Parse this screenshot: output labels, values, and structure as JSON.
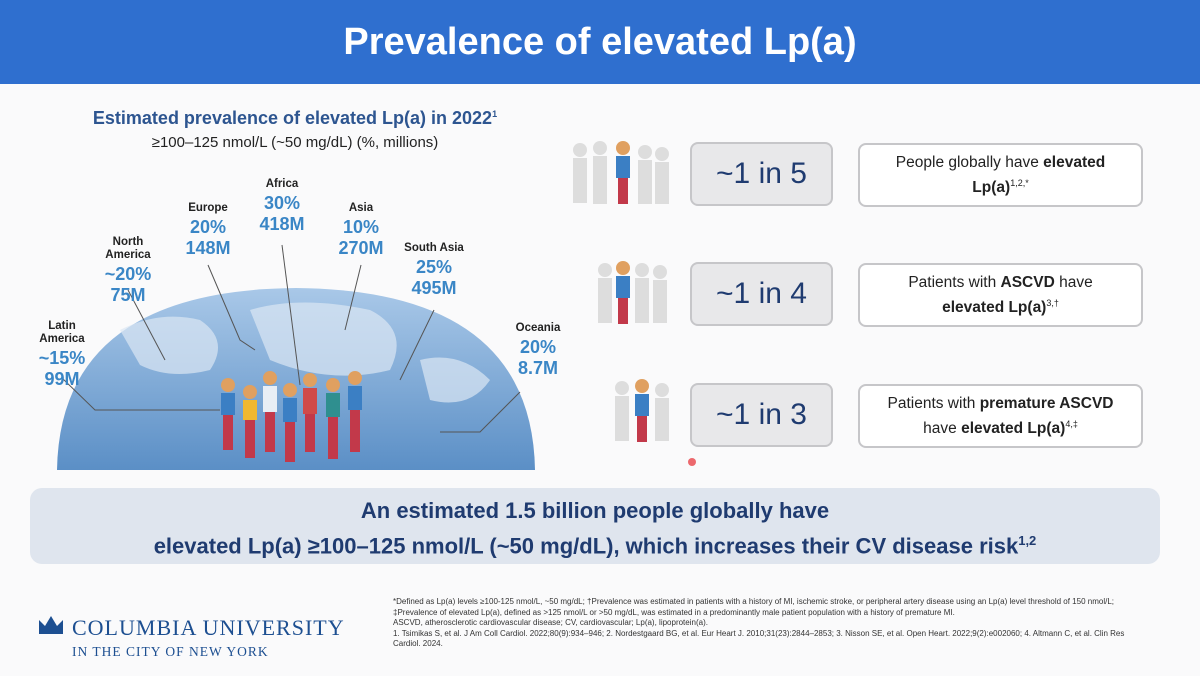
{
  "header": {
    "title": "Prevalence of elevated Lp(a)"
  },
  "map": {
    "heading": "Estimated prevalence of elevated Lp(a) in 2022",
    "heading_sup": "1",
    "subheading": "≥100–125 nmol/L (~50 mg/dL) (%, millions)",
    "regions": [
      {
        "name": "Latin America",
        "percent": "~15%",
        "count": "99M"
      },
      {
        "name": "North America",
        "percent": "~20%",
        "count": "75M"
      },
      {
        "name": "Europe",
        "percent": "20%",
        "count": "148M"
      },
      {
        "name": "Africa",
        "percent": "30%",
        "count": "418M"
      },
      {
        "name": "Asia",
        "percent": "10%",
        "count": "270M"
      },
      {
        "name": "South Asia",
        "percent": "25%",
        "count": "495M"
      },
      {
        "name": "Oceania",
        "percent": "20%",
        "count": "8.7M"
      }
    ]
  },
  "stats": [
    {
      "ratio": "~1 in 5",
      "parts": [
        {
          "text": "People globally have ",
          "bold": false
        },
        {
          "text": "elevated Lp(a)",
          "bold": true
        }
      ],
      "sup": "1,2,*"
    },
    {
      "ratio": "~1 in 4",
      "parts": [
        {
          "text": "Patients with ",
          "bold": false
        },
        {
          "text": "ASCVD",
          "bold": true
        },
        {
          "text": " have ",
          "bold": false
        },
        {
          "text": "elevated Lp(a)",
          "bold": true
        }
      ],
      "sup": "3,†"
    },
    {
      "ratio": "~1 in 3",
      "parts": [
        {
          "text": "Patients with ",
          "bold": false
        },
        {
          "text": "premature ASCVD",
          "bold": true
        },
        {
          "text": " have ",
          "bold": false
        },
        {
          "text": "elevated Lp(a)",
          "bold": true
        }
      ],
      "sup": "4,‡"
    }
  ],
  "summary": {
    "line1": "An estimated 1.5 billion people globally have",
    "line2": "elevated Lp(a) ≥100–125 nmol/L (~50 mg/dL), which increases their CV disease risk",
    "sup": "1,2"
  },
  "logo": {
    "name": "COLUMBIA UNIVERSITY",
    "tagline": "IN THE CITY OF NEW YORK"
  },
  "footnotes": [
    "*Defined as Lp(a) levels ≥100-125 nmol/L, ~50 mg/dL; †Prevalence was estimated in patients with a history of MI, ischemic stroke, or peripheral artery disease using an Lp(a) level threshold of 150 nmol/L; ‡Prevalence of elevated Lp(a), defined as >125 nmol/L or >50 mg/dL, was estimated in a predominantly male patient population with a history of premature MI.",
    "ASCVD, atherosclerotic cardiovascular disease; CV, cardiovascular; Lp(a), lipoprotein(a).",
    "1. Tsimikas S, et al. J Am Coll Cardiol. 2022;80(9):934–946; 2. Nordestgaard BG, et al. Eur Heart J. 2010;31(23):2844–2853; 3. Nisson SE, et al. Open Heart. 2022;9(2):e002060; 4. Altmann C, et al. Clin Res Cardiol. 2024."
  ]
}
